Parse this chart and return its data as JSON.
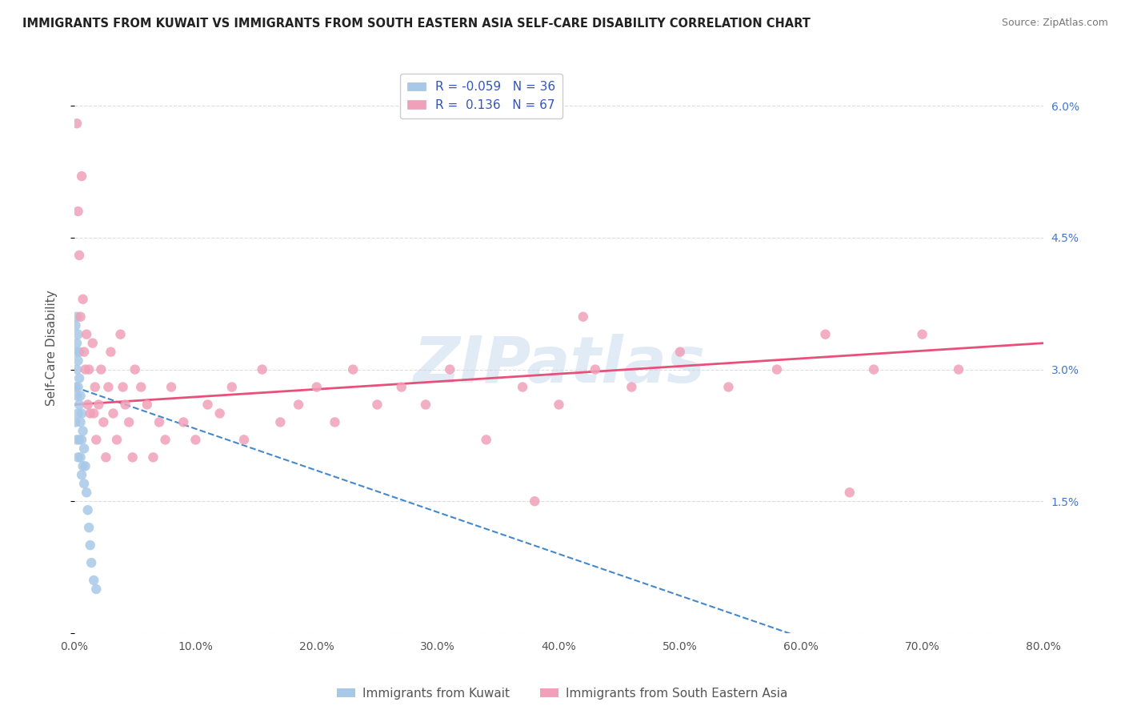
{
  "title": "IMMIGRANTS FROM KUWAIT VS IMMIGRANTS FROM SOUTH EASTERN ASIA SELF-CARE DISABILITY CORRELATION CHART",
  "source": "Source: ZipAtlas.com",
  "ylabel": "Self-Care Disability",
  "watermark": "ZIPatlas",
  "legend_label_1": "Immigrants from Kuwait",
  "legend_label_2": "Immigrants from South Eastern Asia",
  "r1": -0.059,
  "n1": 36,
  "r2": 0.136,
  "n2": 67,
  "color1": "#a8c8e8",
  "color2": "#f0a0b8",
  "trendline1_color": "#4488cc",
  "trendline2_color": "#e8507a",
  "xlim": [
    0.0,
    0.8
  ],
  "ylim": [
    0.0,
    0.065
  ],
  "xticks": [
    0.0,
    0.1,
    0.2,
    0.3,
    0.4,
    0.5,
    0.6,
    0.7,
    0.8
  ],
  "xtick_labels": [
    "0.0%",
    "10.0%",
    "20.0%",
    "30.0%",
    "40.0%",
    "50.0%",
    "60.0%",
    "70.0%",
    "80.0%"
  ],
  "yticks": [
    0.0,
    0.015,
    0.03,
    0.045,
    0.06
  ],
  "ytick_labels": [
    "",
    "1.5%",
    "3.0%",
    "4.5%",
    "6.0%"
  ],
  "kuwait_x": [
    0.001,
    0.001,
    0.001,
    0.001,
    0.002,
    0.002,
    0.002,
    0.002,
    0.003,
    0.003,
    0.003,
    0.003,
    0.004,
    0.004,
    0.004,
    0.005,
    0.005,
    0.005,
    0.006,
    0.006,
    0.006,
    0.007,
    0.007,
    0.008,
    0.008,
    0.009,
    0.01,
    0.011,
    0.012,
    0.013,
    0.014,
    0.016,
    0.018,
    0.002,
    0.003,
    0.004
  ],
  "kuwait_y": [
    0.035,
    0.032,
    0.028,
    0.024,
    0.033,
    0.03,
    0.027,
    0.022,
    0.031,
    0.028,
    0.025,
    0.02,
    0.029,
    0.026,
    0.022,
    0.027,
    0.024,
    0.02,
    0.025,
    0.022,
    0.018,
    0.023,
    0.019,
    0.021,
    0.017,
    0.019,
    0.016,
    0.014,
    0.012,
    0.01,
    0.008,
    0.006,
    0.005,
    0.036,
    0.034,
    0.032
  ],
  "sea_x": [
    0.002,
    0.003,
    0.004,
    0.005,
    0.006,
    0.007,
    0.008,
    0.009,
    0.01,
    0.011,
    0.012,
    0.013,
    0.015,
    0.016,
    0.017,
    0.018,
    0.02,
    0.022,
    0.024,
    0.026,
    0.028,
    0.03,
    0.032,
    0.035,
    0.038,
    0.04,
    0.042,
    0.045,
    0.048,
    0.05,
    0.055,
    0.06,
    0.065,
    0.07,
    0.075,
    0.08,
    0.09,
    0.1,
    0.11,
    0.12,
    0.13,
    0.14,
    0.155,
    0.17,
    0.185,
    0.2,
    0.215,
    0.23,
    0.25,
    0.27,
    0.29,
    0.31,
    0.34,
    0.37,
    0.4,
    0.43,
    0.46,
    0.5,
    0.54,
    0.58,
    0.62,
    0.66,
    0.7,
    0.64,
    0.73,
    0.38,
    0.42
  ],
  "sea_y": [
    0.058,
    0.048,
    0.043,
    0.036,
    0.052,
    0.038,
    0.032,
    0.03,
    0.034,
    0.026,
    0.03,
    0.025,
    0.033,
    0.025,
    0.028,
    0.022,
    0.026,
    0.03,
    0.024,
    0.02,
    0.028,
    0.032,
    0.025,
    0.022,
    0.034,
    0.028,
    0.026,
    0.024,
    0.02,
    0.03,
    0.028,
    0.026,
    0.02,
    0.024,
    0.022,
    0.028,
    0.024,
    0.022,
    0.026,
    0.025,
    0.028,
    0.022,
    0.03,
    0.024,
    0.026,
    0.028,
    0.024,
    0.03,
    0.026,
    0.028,
    0.026,
    0.03,
    0.022,
    0.028,
    0.026,
    0.03,
    0.028,
    0.032,
    0.028,
    0.03,
    0.034,
    0.03,
    0.034,
    0.016,
    0.03,
    0.015,
    0.036
  ],
  "background_color": "#ffffff",
  "grid_color": "#dddddd",
  "trendline1_start_y": 0.028,
  "trendline1_end_y": -0.01,
  "trendline2_start_y": 0.026,
  "trendline2_end_y": 0.033
}
